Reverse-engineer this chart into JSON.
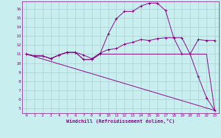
{
  "xlabel": "Windchill (Refroidissement éolien,°C)",
  "xlim": [
    -0.5,
    23.5
  ],
  "ylim": [
    4.5,
    16.8
  ],
  "yticks": [
    5,
    6,
    7,
    8,
    9,
    10,
    11,
    12,
    13,
    14,
    15,
    16
  ],
  "xticks": [
    0,
    1,
    2,
    3,
    4,
    5,
    6,
    7,
    8,
    9,
    10,
    11,
    12,
    13,
    14,
    15,
    16,
    17,
    18,
    19,
    20,
    21,
    22,
    23
  ],
  "bg_color": "#c8eef0",
  "line_color": "#880088",
  "grid_color": "#aacccc",
  "lines": [
    {
      "x": [
        0,
        1,
        2,
        3,
        4,
        5,
        6,
        7,
        8,
        9,
        10,
        11,
        12,
        13,
        14,
        15,
        16,
        17,
        18,
        19,
        20,
        21,
        22,
        23
      ],
      "y": [
        11.0,
        10.8,
        10.8,
        10.5,
        10.9,
        11.2,
        11.2,
        10.9,
        10.5,
        11.1,
        11.5,
        11.6,
        12.1,
        12.3,
        12.6,
        12.5,
        12.7,
        12.8,
        12.8,
        12.8,
        11.0,
        12.6,
        12.5,
        12.5
      ],
      "marker": true
    },
    {
      "x": [
        0,
        1,
        2,
        3,
        4,
        5,
        6,
        7,
        8,
        9,
        10,
        11,
        12,
        13,
        14,
        15,
        16,
        17,
        18,
        19,
        20,
        21,
        22,
        23
      ],
      "y": [
        11.0,
        10.8,
        10.8,
        10.5,
        10.9,
        11.2,
        11.2,
        10.4,
        10.4,
        11.0,
        13.2,
        14.9,
        15.7,
        15.7,
        16.3,
        16.6,
        16.6,
        15.8,
        12.8,
        11.0,
        11.0,
        8.5,
        6.2,
        4.8
      ],
      "marker": true
    },
    {
      "x": [
        0,
        1,
        2,
        3,
        4,
        5,
        6,
        7,
        8,
        9,
        10,
        11,
        12,
        13,
        14,
        15,
        16,
        17,
        18,
        19,
        20,
        21,
        22,
        23
      ],
      "y": [
        11.0,
        10.8,
        10.8,
        10.5,
        10.9,
        11.2,
        11.2,
        10.4,
        10.4,
        11.0,
        11.0,
        11.0,
        11.0,
        11.0,
        11.0,
        11.0,
        11.0,
        11.0,
        11.0,
        11.0,
        11.0,
        11.0,
        11.0,
        4.8
      ],
      "marker": false
    },
    {
      "x": [
        0,
        23
      ],
      "y": [
        11.0,
        4.8
      ],
      "marker": false
    }
  ]
}
